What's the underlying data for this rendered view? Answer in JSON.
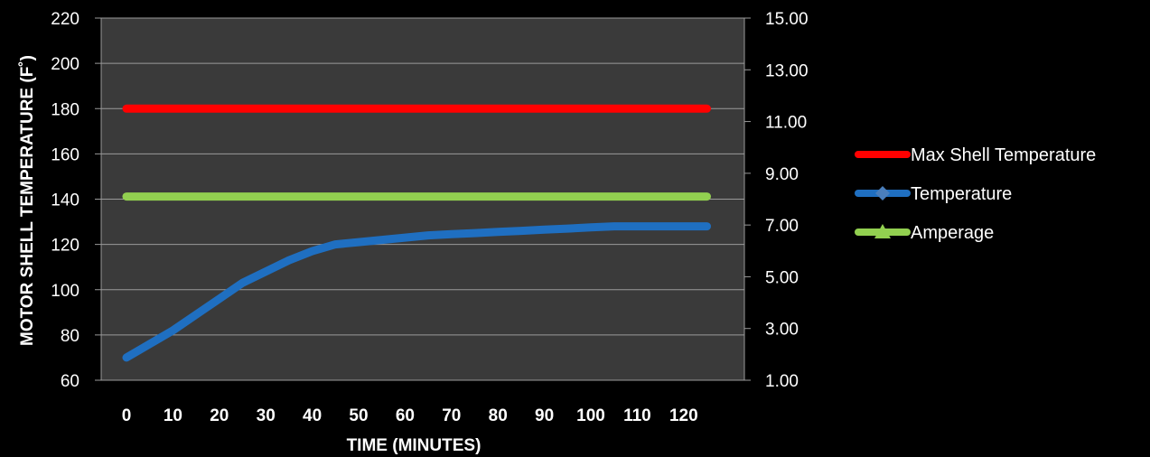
{
  "chart_data": {
    "type": "line",
    "xlabel": "TIME (MINUTES)",
    "ylabel": "MOTOR SHELL TEMPERATURE (F˚)",
    "x_tick_labels": [
      "0",
      "10",
      "20",
      "30",
      "40",
      "50",
      "60",
      "70",
      "80",
      "90",
      "100",
      "110",
      "120"
    ],
    "ylim": [
      60,
      220
    ],
    "yticks": [
      "60",
      "80",
      "100",
      "120",
      "140",
      "160",
      "180",
      "200",
      "220"
    ],
    "y2lim": [
      1,
      15
    ],
    "y2ticks": [
      "1.00",
      "3.00",
      "5.00",
      "7.00",
      "9.00",
      "11.00",
      "13.00",
      "15.00"
    ],
    "grid": true,
    "legend_position": "right",
    "plot_background": "#3a3a3a",
    "series": [
      {
        "name": "Max Shell Temperature",
        "color": "#ff0000",
        "axis": "left",
        "marker": "none",
        "x": [
          0,
          125
        ],
        "y": [
          180,
          180
        ]
      },
      {
        "name": "Temperature",
        "color": "#1f6fc1",
        "axis": "left",
        "marker": "diamond",
        "x": [
          0,
          5,
          10,
          15,
          20,
          25,
          30,
          35,
          40,
          45,
          50,
          55,
          60,
          65,
          70,
          75,
          80,
          85,
          90,
          95,
          100,
          105,
          110,
          115,
          120,
          125
        ],
        "y": [
          70,
          76,
          82,
          89,
          96,
          103,
          108,
          113,
          117,
          120,
          121,
          122,
          123,
          124,
          124.5,
          125,
          125.5,
          126,
          126.5,
          127,
          127.5,
          128,
          128,
          128,
          128,
          128
        ]
      },
      {
        "name": "Amperage",
        "color": "#92d050",
        "axis": "right",
        "marker": "triangle",
        "x": [
          0,
          125
        ],
        "y": [
          8.1,
          8.1
        ]
      }
    ]
  }
}
